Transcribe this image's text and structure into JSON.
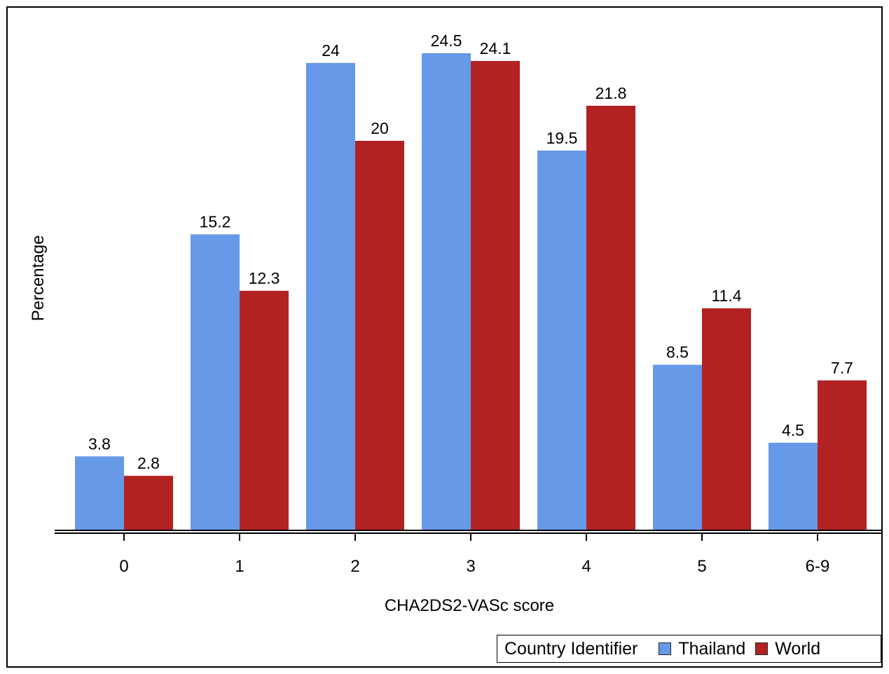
{
  "chart_data": {
    "type": "bar",
    "title": "",
    "xlabel": "CHA2DS2-VASc score",
    "ylabel": "Percentage",
    "ylim": [
      0,
      25.5
    ],
    "grid": false,
    "legend_position": "bottom-right",
    "legend_title": "Country Identifier",
    "categories": [
      "0",
      "1",
      "2",
      "3",
      "4",
      "5",
      "6-9"
    ],
    "series": [
      {
        "name": "Thailand",
        "color": "#6699e8",
        "values": [
          3.8,
          15.2,
          24,
          24.5,
          19.5,
          8.5,
          4.5
        ],
        "labels": [
          "3.8",
          "15.2",
          "24",
          "24.5",
          "19.5",
          "8.5",
          "4.5"
        ]
      },
      {
        "name": "World",
        "color": "#b22222",
        "values": [
          2.8,
          12.3,
          20,
          24.1,
          21.8,
          11.4,
          7.7
        ],
        "labels": [
          "2.8",
          "12.3",
          "20",
          "24.1",
          "21.8",
          "11.4",
          "7.7"
        ]
      }
    ]
  }
}
